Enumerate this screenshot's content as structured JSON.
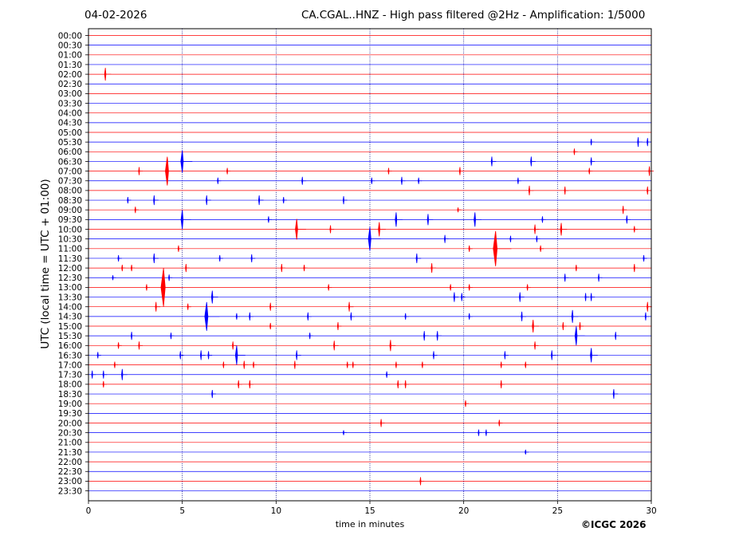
{
  "header": {
    "date": "04-02-2026",
    "title": "CA.CGAL..HNZ - High pass filtered @2Hz - Amplification: 1/5000"
  },
  "footer": {
    "copyright": "©ICGC 2026"
  },
  "chart_data": {
    "type": "line",
    "title": "CA.CGAL..HNZ - High pass filtered @2Hz - Amplification: 1/5000",
    "xlabel": "time in minutes",
    "ylabel": "UTC (local time = UTC + 01:00)",
    "xlim": [
      0,
      30
    ],
    "xticks": [
      "0",
      "5",
      "10",
      "15",
      "20",
      "25",
      "30"
    ],
    "yticks": [
      "00:00",
      "00:30",
      "01:00",
      "01:30",
      "02:00",
      "02:30",
      "03:00",
      "03:30",
      "04:00",
      "04:30",
      "05:00",
      "05:30",
      "06:00",
      "06:30",
      "07:00",
      "07:30",
      "08:00",
      "08:30",
      "09:00",
      "09:30",
      "10:00",
      "10:30",
      "11:00",
      "11:30",
      "12:00",
      "12:30",
      "13:00",
      "13:30",
      "14:00",
      "14:30",
      "15:00",
      "15:30",
      "16:00",
      "16:30",
      "17:00",
      "17:30",
      "18:00",
      "18:30",
      "19:00",
      "19:30",
      "20:00",
      "20:30",
      "21:00",
      "21:30",
      "22:00",
      "22:30",
      "23:00",
      "23:30"
    ],
    "grid": "vertical dotted lines at 5-minute intervals",
    "trace_colors": [
      "#ff0000",
      "#0000ff"
    ],
    "events": [
      {
        "row": "02:00",
        "t": 0.9,
        "amp": 8
      },
      {
        "row": "05:30",
        "t": 26.8,
        "amp": 4
      },
      {
        "row": "05:30",
        "t": 29.3,
        "amp": 6
      },
      {
        "row": "05:30",
        "t": 29.8,
        "amp": 5
      },
      {
        "row": "06:00",
        "t": 25.9,
        "amp": 4
      },
      {
        "row": "06:30",
        "t": 5.0,
        "amp": 14
      },
      {
        "row": "06:30",
        "t": 21.5,
        "amp": 6
      },
      {
        "row": "06:30",
        "t": 23.6,
        "amp": 6
      },
      {
        "row": "06:30",
        "t": 26.8,
        "amp": 5
      },
      {
        "row": "07:00",
        "t": 2.7,
        "amp": 5
      },
      {
        "row": "07:00",
        "t": 4.2,
        "amp": 18
      },
      {
        "row": "07:00",
        "t": 7.4,
        "amp": 4
      },
      {
        "row": "07:00",
        "t": 16.0,
        "amp": 4
      },
      {
        "row": "07:00",
        "t": 19.8,
        "amp": 5
      },
      {
        "row": "07:00",
        "t": 26.7,
        "amp": 4
      },
      {
        "row": "07:00",
        "t": 29.9,
        "amp": 6
      },
      {
        "row": "07:30",
        "t": 6.9,
        "amp": 4
      },
      {
        "row": "07:30",
        "t": 11.4,
        "amp": 5
      },
      {
        "row": "07:30",
        "t": 15.1,
        "amp": 4
      },
      {
        "row": "07:30",
        "t": 16.7,
        "amp": 5
      },
      {
        "row": "07:30",
        "t": 17.6,
        "amp": 4
      },
      {
        "row": "07:30",
        "t": 22.9,
        "amp": 4
      },
      {
        "row": "08:00",
        "t": 23.5,
        "amp": 6
      },
      {
        "row": "08:00",
        "t": 25.4,
        "amp": 5
      },
      {
        "row": "08:00",
        "t": 29.8,
        "amp": 5
      },
      {
        "row": "08:30",
        "t": 2.1,
        "amp": 4
      },
      {
        "row": "08:30",
        "t": 3.5,
        "amp": 6
      },
      {
        "row": "08:30",
        "t": 6.3,
        "amp": 6
      },
      {
        "row": "08:30",
        "t": 9.1,
        "amp": 6
      },
      {
        "row": "08:30",
        "t": 10.4,
        "amp": 4
      },
      {
        "row": "08:30",
        "t": 13.6,
        "amp": 5
      },
      {
        "row": "09:00",
        "t": 2.5,
        "amp": 4
      },
      {
        "row": "09:00",
        "t": 19.7,
        "amp": 3
      },
      {
        "row": "09:00",
        "t": 28.5,
        "amp": 5
      },
      {
        "row": "09:30",
        "t": 5.0,
        "amp": 12
      },
      {
        "row": "09:30",
        "t": 9.6,
        "amp": 4
      },
      {
        "row": "09:30",
        "t": 16.4,
        "amp": 9
      },
      {
        "row": "09:30",
        "t": 18.1,
        "amp": 7
      },
      {
        "row": "09:30",
        "t": 20.6,
        "amp": 9
      },
      {
        "row": "09:30",
        "t": 24.2,
        "amp": 4
      },
      {
        "row": "09:30",
        "t": 28.7,
        "amp": 5
      },
      {
        "row": "10:00",
        "t": 11.1,
        "amp": 13
      },
      {
        "row": "10:00",
        "t": 12.9,
        "amp": 5
      },
      {
        "row": "10:00",
        "t": 15.5,
        "amp": 9
      },
      {
        "row": "10:00",
        "t": 23.8,
        "amp": 6
      },
      {
        "row": "10:00",
        "t": 25.2,
        "amp": 8
      },
      {
        "row": "10:00",
        "t": 29.1,
        "amp": 4
      },
      {
        "row": "10:30",
        "t": 15.0,
        "amp": 15
      },
      {
        "row": "10:30",
        "t": 19.0,
        "amp": 5
      },
      {
        "row": "10:30",
        "t": 22.5,
        "amp": 4
      },
      {
        "row": "10:30",
        "t": 23.9,
        "amp": 4
      },
      {
        "row": "11:00",
        "t": 4.8,
        "amp": 4
      },
      {
        "row": "11:00",
        "t": 20.3,
        "amp": 4
      },
      {
        "row": "11:00",
        "t": 21.7,
        "amp": 22
      },
      {
        "row": "11:00",
        "t": 24.1,
        "amp": 4
      },
      {
        "row": "11:30",
        "t": 1.6,
        "amp": 4
      },
      {
        "row": "11:30",
        "t": 3.5,
        "amp": 6
      },
      {
        "row": "11:30",
        "t": 7.0,
        "amp": 4
      },
      {
        "row": "11:30",
        "t": 8.7,
        "amp": 5
      },
      {
        "row": "11:30",
        "t": 17.5,
        "amp": 6
      },
      {
        "row": "11:30",
        "t": 29.6,
        "amp": 4
      },
      {
        "row": "12:00",
        "t": 1.8,
        "amp": 4
      },
      {
        "row": "12:00",
        "t": 2.3,
        "amp": 4
      },
      {
        "row": "12:00",
        "t": 5.2,
        "amp": 5
      },
      {
        "row": "12:00",
        "t": 10.3,
        "amp": 5
      },
      {
        "row": "12:00",
        "t": 11.5,
        "amp": 4
      },
      {
        "row": "12:00",
        "t": 18.3,
        "amp": 6
      },
      {
        "row": "12:00",
        "t": 26.0,
        "amp": 4
      },
      {
        "row": "12:00",
        "t": 29.1,
        "amp": 5
      },
      {
        "row": "12:30",
        "t": 1.3,
        "amp": 3
      },
      {
        "row": "12:30",
        "t": 4.3,
        "amp": 4
      },
      {
        "row": "12:30",
        "t": 25.4,
        "amp": 5
      },
      {
        "row": "12:30",
        "t": 27.2,
        "amp": 5
      },
      {
        "row": "13:00",
        "t": 3.1,
        "amp": 4
      },
      {
        "row": "13:00",
        "t": 4.0,
        "amp": 24
      },
      {
        "row": "13:00",
        "t": 12.8,
        "amp": 4
      },
      {
        "row": "13:00",
        "t": 19.3,
        "amp": 4
      },
      {
        "row": "13:00",
        "t": 20.3,
        "amp": 4
      },
      {
        "row": "13:00",
        "t": 23.4,
        "amp": 4
      },
      {
        "row": "13:30",
        "t": 6.6,
        "amp": 8
      },
      {
        "row": "13:30",
        "t": 19.5,
        "amp": 6
      },
      {
        "row": "13:30",
        "t": 19.9,
        "amp": 5
      },
      {
        "row": "13:30",
        "t": 23.0,
        "amp": 6
      },
      {
        "row": "13:30",
        "t": 26.5,
        "amp": 5
      },
      {
        "row": "13:30",
        "t": 26.8,
        "amp": 5
      },
      {
        "row": "14:00",
        "t": 3.6,
        "amp": 6
      },
      {
        "row": "14:00",
        "t": 5.3,
        "amp": 4
      },
      {
        "row": "14:00",
        "t": 9.7,
        "amp": 5
      },
      {
        "row": "14:00",
        "t": 13.9,
        "amp": 6
      },
      {
        "row": "14:00",
        "t": 29.8,
        "amp": 6
      },
      {
        "row": "14:30",
        "t": 6.3,
        "amp": 18
      },
      {
        "row": "14:30",
        "t": 7.9,
        "amp": 4
      },
      {
        "row": "14:30",
        "t": 8.6,
        "amp": 5
      },
      {
        "row": "14:30",
        "t": 11.7,
        "amp": 5
      },
      {
        "row": "14:30",
        "t": 14.0,
        "amp": 5
      },
      {
        "row": "14:30",
        "t": 16.9,
        "amp": 4
      },
      {
        "row": "14:30",
        "t": 20.3,
        "amp": 4
      },
      {
        "row": "14:30",
        "t": 23.1,
        "amp": 6
      },
      {
        "row": "14:30",
        "t": 25.8,
        "amp": 8
      },
      {
        "row": "14:30",
        "t": 29.7,
        "amp": 5
      },
      {
        "row": "15:00",
        "t": 9.7,
        "amp": 4
      },
      {
        "row": "15:00",
        "t": 13.3,
        "amp": 5
      },
      {
        "row": "15:00",
        "t": 23.7,
        "amp": 8
      },
      {
        "row": "15:00",
        "t": 25.3,
        "amp": 5
      },
      {
        "row": "15:00",
        "t": 26.2,
        "amp": 5
      },
      {
        "row": "15:30",
        "t": 2.3,
        "amp": 5
      },
      {
        "row": "15:30",
        "t": 4.4,
        "amp": 4
      },
      {
        "row": "15:30",
        "t": 11.8,
        "amp": 4
      },
      {
        "row": "15:30",
        "t": 17.9,
        "amp": 6
      },
      {
        "row": "15:30",
        "t": 18.6,
        "amp": 6
      },
      {
        "row": "15:30",
        "t": 26.0,
        "amp": 12
      },
      {
        "row": "15:30",
        "t": 28.1,
        "amp": 5
      },
      {
        "row": "16:00",
        "t": 1.6,
        "amp": 4
      },
      {
        "row": "16:00",
        "t": 2.7,
        "amp": 5
      },
      {
        "row": "16:00",
        "t": 7.7,
        "amp": 5
      },
      {
        "row": "16:00",
        "t": 13.1,
        "amp": 6
      },
      {
        "row": "16:00",
        "t": 16.1,
        "amp": 7
      },
      {
        "row": "16:00",
        "t": 23.8,
        "amp": 5
      },
      {
        "row": "16:30",
        "t": 0.5,
        "amp": 4
      },
      {
        "row": "16:30",
        "t": 4.9,
        "amp": 5
      },
      {
        "row": "16:30",
        "t": 6.0,
        "amp": 6
      },
      {
        "row": "16:30",
        "t": 6.4,
        "amp": 5
      },
      {
        "row": "16:30",
        "t": 7.9,
        "amp": 12
      },
      {
        "row": "16:30",
        "t": 11.1,
        "amp": 6
      },
      {
        "row": "16:30",
        "t": 18.4,
        "amp": 5
      },
      {
        "row": "16:30",
        "t": 22.2,
        "amp": 5
      },
      {
        "row": "16:30",
        "t": 24.7,
        "amp": 6
      },
      {
        "row": "16:30",
        "t": 26.8,
        "amp": 9
      },
      {
        "row": "17:00",
        "t": 1.4,
        "amp": 4
      },
      {
        "row": "17:00",
        "t": 7.2,
        "amp": 4
      },
      {
        "row": "17:00",
        "t": 8.3,
        "amp": 5
      },
      {
        "row": "17:00",
        "t": 8.8,
        "amp": 4
      },
      {
        "row": "17:00",
        "t": 11.0,
        "amp": 5
      },
      {
        "row": "17:00",
        "t": 13.8,
        "amp": 4
      },
      {
        "row": "17:00",
        "t": 14.1,
        "amp": 4
      },
      {
        "row": "17:00",
        "t": 16.4,
        "amp": 4
      },
      {
        "row": "17:00",
        "t": 17.8,
        "amp": 4
      },
      {
        "row": "17:00",
        "t": 22.0,
        "amp": 4
      },
      {
        "row": "17:00",
        "t": 23.3,
        "amp": 4
      },
      {
        "row": "17:30",
        "t": 0.2,
        "amp": 5
      },
      {
        "row": "17:30",
        "t": 0.8,
        "amp": 5
      },
      {
        "row": "17:30",
        "t": 1.8,
        "amp": 7
      },
      {
        "row": "17:30",
        "t": 15.9,
        "amp": 4
      },
      {
        "row": "18:00",
        "t": 0.8,
        "amp": 4
      },
      {
        "row": "18:00",
        "t": 8.0,
        "amp": 5
      },
      {
        "row": "18:00",
        "t": 8.6,
        "amp": 5
      },
      {
        "row": "18:00",
        "t": 16.5,
        "amp": 5
      },
      {
        "row": "18:00",
        "t": 16.9,
        "amp": 5
      },
      {
        "row": "18:00",
        "t": 22.0,
        "amp": 5
      },
      {
        "row": "18:30",
        "t": 6.6,
        "amp": 5
      },
      {
        "row": "18:30",
        "t": 28.0,
        "amp": 6
      },
      {
        "row": "19:00",
        "t": 20.1,
        "amp": 4
      },
      {
        "row": "20:00",
        "t": 15.6,
        "amp": 5
      },
      {
        "row": "20:00",
        "t": 21.9,
        "amp": 4
      },
      {
        "row": "20:30",
        "t": 13.6,
        "amp": 3
      },
      {
        "row": "20:30",
        "t": 20.8,
        "amp": 4
      },
      {
        "row": "20:30",
        "t": 21.2,
        "amp": 4
      },
      {
        "row": "21:30",
        "t": 23.3,
        "amp": 3
      },
      {
        "row": "23:00",
        "t": 17.7,
        "amp": 5
      }
    ]
  }
}
